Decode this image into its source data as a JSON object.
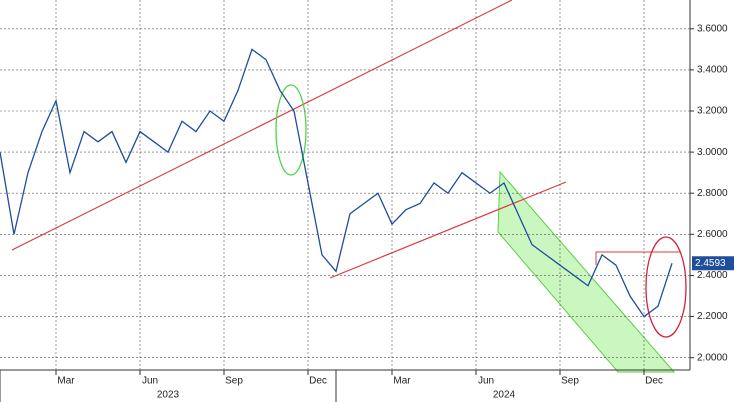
{
  "chart_data": {
    "type": "line",
    "color": "#1f4e9c",
    "categories": [
      null,
      null,
      null,
      null,
      "Mar",
      null,
      null,
      null,
      null,
      null,
      "Jun",
      null,
      null,
      null,
      null,
      null,
      "Sep",
      null,
      null,
      null,
      null,
      null,
      "Dec",
      null,
      null,
      null,
      null,
      null,
      "Mar",
      null,
      null,
      null,
      null,
      null,
      "Jun",
      null,
      null,
      null,
      null,
      null,
      "Sep",
      null,
      null,
      null,
      null,
      null,
      "Dec",
      null,
      null
    ],
    "values": [
      3.0,
      2.6,
      2.9,
      3.1,
      3.25,
      2.9,
      3.1,
      3.05,
      3.1,
      2.95,
      3.1,
      3.05,
      3.0,
      3.15,
      3.1,
      3.2,
      3.15,
      3.3,
      3.5,
      3.45,
      3.3,
      3.2,
      2.85,
      2.5,
      2.42,
      2.7,
      2.75,
      2.8,
      2.65,
      2.72,
      2.75,
      2.85,
      2.8,
      2.9,
      2.85,
      2.8,
      2.85,
      2.7,
      2.55,
      2.5,
      2.45,
      2.4,
      2.35,
      2.5,
      2.45,
      2.3,
      2.2,
      2.25,
      2.4593
    ],
    "years": [
      "2023",
      "2024"
    ],
    "ylim": [
      1.94,
      3.74
    ],
    "yticks": [
      {
        "value": 2.0,
        "label": "2.0000"
      },
      {
        "value": 2.2,
        "label": "2.2000"
      },
      {
        "value": 2.4,
        "label": "2.4000"
      },
      {
        "value": 2.6,
        "label": "2.6000"
      },
      {
        "value": 2.8,
        "label": "2.8000"
      },
      {
        "value": 3.0,
        "label": "3.0000"
      },
      {
        "value": 3.2,
        "label": "3.2000"
      },
      {
        "value": 3.4,
        "label": "3.4000"
      },
      {
        "value": 3.6,
        "label": "3.6000"
      }
    ],
    "grid": true,
    "y_axis_side": "right"
  }
}
